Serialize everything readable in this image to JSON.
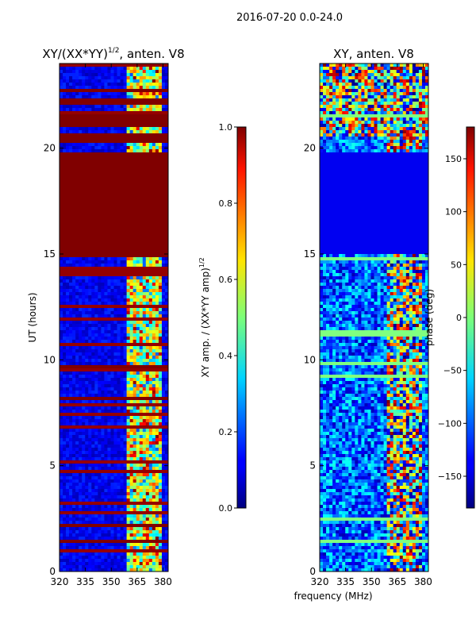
{
  "suptitle": "2016-07-20 0.0-24.0",
  "chart_data": [
    {
      "type": "heatmap",
      "title_main": "XY/(XX*YY)",
      "title_sup": "1/2",
      "title_rest": ", anten. V8",
      "xlabel": "",
      "ylabel": "UT (hours)",
      "xlim": [
        320,
        383
      ],
      "ylim": [
        0,
        24
      ],
      "xticks": [
        "320",
        "335",
        "350",
        "365",
        "380"
      ],
      "xtick_values": [
        320,
        335,
        350,
        365,
        380
      ],
      "yticks": [
        "0",
        "5",
        "10",
        "15",
        "20"
      ],
      "ytick_values": [
        0,
        5,
        10,
        15,
        20
      ],
      "colorbar": {
        "label_main": "XY amp. / (XX*YY amp)",
        "label_sup": "1/2",
        "range": [
          0.0,
          1.0
        ],
        "ticks": [
          "0.0",
          "0.2",
          "0.4",
          "0.6",
          "0.8",
          "1.0"
        ],
        "tick_values": [
          0.0,
          0.2,
          0.4,
          0.6,
          0.8,
          1.0
        ]
      },
      "saturated_value": 1.0,
      "saturated_bands_hours": [
        [
          14.8,
          19.8
        ],
        [
          20.3,
          20.7
        ],
        [
          21.0,
          21.6
        ],
        [
          22.1,
          22.3
        ],
        [
          22.6,
          22.8
        ],
        [
          1.3,
          1.5
        ],
        [
          2.1,
          2.3
        ],
        [
          8.1,
          8.25
        ],
        [
          9.65,
          9.8
        ]
      ],
      "active_band_mhz": [
        360,
        378
      ],
      "background_value": 0.1
    },
    {
      "type": "heatmap",
      "title": "XY, anten. V8",
      "xlabel": "frequency (MHz)",
      "ylabel": "",
      "xlim": [
        320,
        383
      ],
      "ylim": [
        0,
        24
      ],
      "xticks": [
        "320",
        "335",
        "350",
        "365",
        "380"
      ],
      "xtick_values": [
        320,
        335,
        350,
        365,
        380
      ],
      "yticks": [
        "0",
        "5",
        "10",
        "15",
        "20"
      ],
      "ytick_values": [
        0,
        5,
        10,
        15,
        20
      ],
      "colorbar": {
        "label": "phase (deg)",
        "range": [
          -180,
          180
        ],
        "ticks": [
          "−150",
          "−100",
          "−50",
          "0",
          "50",
          "100",
          "150"
        ],
        "tick_values": [
          -150,
          -100,
          -50,
          0,
          50,
          100,
          150
        ]
      },
      "uniform_band_hours": [
        15.0,
        19.8
      ],
      "uniform_value": -140,
      "active_band_mhz": [
        360,
        378
      ]
    }
  ]
}
